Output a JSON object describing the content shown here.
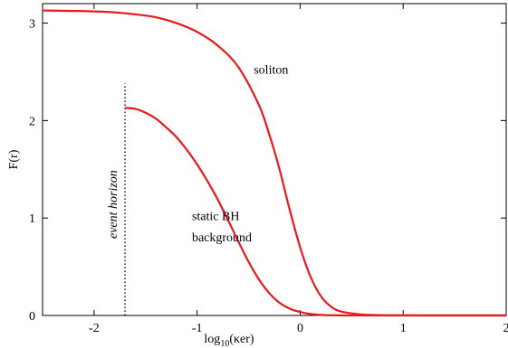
{
  "chart_data": {
    "type": "line",
    "xlabel": {
      "base": "log",
      "subscript": "10",
      "rest": "(κer)"
    },
    "ylabel": "F(r)",
    "xlim": [
      -2.5,
      2
    ],
    "ylim": [
      0,
      3.2
    ],
    "xticks": [
      -2,
      -1,
      0,
      1,
      2
    ],
    "xtick_labels": [
      "-2",
      "-1",
      "0",
      "1",
      "2"
    ],
    "yticks": [
      0,
      1,
      2,
      3
    ],
    "ytick_labels": [
      "0",
      "1",
      "2",
      "3"
    ],
    "grid": false,
    "legend": "none",
    "series": [
      {
        "name": "soliton",
        "color": "#e8191c",
        "x": [
          -2.5,
          -2.2,
          -2.0,
          -1.8,
          -1.6,
          -1.4,
          -1.2,
          -1.0,
          -0.8,
          -0.6,
          -0.4,
          -0.3,
          -0.2,
          -0.1,
          0.0,
          0.1,
          0.2,
          0.3,
          0.4,
          0.6,
          0.8,
          1.0,
          1.5,
          2.0
        ],
        "y": [
          3.13,
          3.125,
          3.12,
          3.11,
          3.09,
          3.06,
          3.0,
          2.91,
          2.77,
          2.55,
          2.16,
          1.86,
          1.5,
          1.08,
          0.7,
          0.4,
          0.2,
          0.09,
          0.04,
          0.01,
          0.003,
          0.001,
          0.0,
          0.0
        ]
      },
      {
        "name": "static BH background",
        "color": "#e8191c",
        "x": [
          -1.7,
          -1.6,
          -1.5,
          -1.4,
          -1.3,
          -1.2,
          -1.1,
          -1.0,
          -0.9,
          -0.8,
          -0.7,
          -0.6,
          -0.5,
          -0.4,
          -0.3,
          -0.2,
          -0.1,
          0.0,
          0.1,
          0.2,
          0.3,
          0.4,
          0.6,
          0.8,
          1.0,
          1.5,
          2.0
        ],
        "y": [
          2.13,
          2.12,
          2.08,
          2.02,
          1.93,
          1.83,
          1.7,
          1.55,
          1.38,
          1.19,
          0.98,
          0.76,
          0.55,
          0.37,
          0.23,
          0.13,
          0.07,
          0.035,
          0.015,
          0.006,
          0.002,
          0.001,
          0.0,
          0.0,
          0.0,
          0.0,
          0.0
        ]
      }
    ],
    "annotations": [
      {
        "text": "soliton",
        "x": -0.45,
        "y": 2.48
      },
      {
        "text": "static BH",
        "x": -1.05,
        "y": 0.98
      },
      {
        "text": "background",
        "x": -1.05,
        "y": 0.76
      },
      {
        "text": "event horizon",
        "x": -1.78,
        "y": 1.14,
        "rotated": true
      }
    ],
    "vertical_lines": [
      {
        "x": -1.7,
        "y_from": 0,
        "y_to": 2.38,
        "style": "dotted",
        "color": "#000000"
      }
    ]
  }
}
